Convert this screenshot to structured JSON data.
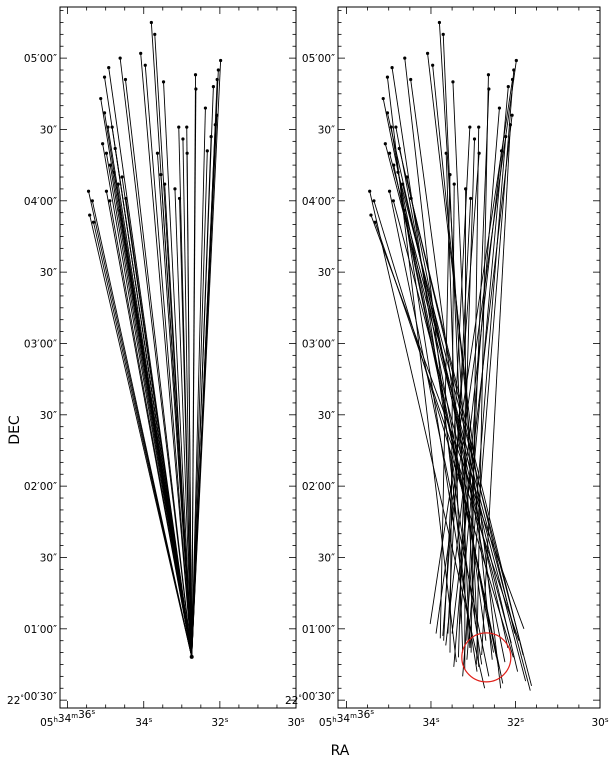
{
  "figure": {
    "xlabel": "RA",
    "ylabel": "DEC"
  },
  "colors": {
    "lines": "#000000",
    "frame": "#000000",
    "circle": "#e0201a"
  },
  "chart_data": [
    {
      "type": "line",
      "panel": "left",
      "xlabel": "RA",
      "ylabel": "DEC",
      "xticks": [
        {
          "value": 36,
          "label": "05h34m36s"
        },
        {
          "value": 34,
          "label": "34s"
        },
        {
          "value": 32,
          "label": "32s"
        },
        {
          "value": 30,
          "label": "30s"
        }
      ],
      "yticks": [
        {
          "value": 300,
          "label": "05′00″"
        },
        {
          "value": 270,
          "label": "30″"
        },
        {
          "value": 240,
          "label": "04′00″"
        },
        {
          "value": 210,
          "label": "30″"
        },
        {
          "value": 180,
          "label": "03′00″"
        },
        {
          "value": 150,
          "label": "30″"
        },
        {
          "value": 120,
          "label": "02′00″"
        },
        {
          "value": 90,
          "label": "30″"
        },
        {
          "value": 60,
          "label": "01′00″"
        },
        {
          "value": 30,
          "label": "22°00′30″"
        }
      ],
      "convergence_point": [
        32.74,
        48.2
      ],
      "source_points": [
        [
          35.45,
          244
        ],
        [
          35.35,
          240
        ],
        [
          35.42,
          234
        ],
        [
          35.32,
          231
        ],
        [
          35.13,
          283
        ],
        [
          35.03,
          277
        ],
        [
          35.08,
          264
        ],
        [
          34.98,
          260
        ],
        [
          34.94,
          271
        ],
        [
          34.83,
          271
        ],
        [
          34.75,
          262
        ],
        [
          34.88,
          255
        ],
        [
          34.78,
          252
        ],
        [
          34.57,
          250
        ],
        [
          34.67,
          247
        ],
        [
          34.98,
          244
        ],
        [
          34.89,
          240
        ],
        [
          34.63,
          236
        ],
        [
          34.47,
          241
        ],
        [
          35.03,
          292
        ],
        [
          34.92,
          296
        ],
        [
          34.62,
          300
        ],
        [
          34.48,
          291
        ],
        [
          34.08,
          302
        ],
        [
          33.96,
          297
        ],
        [
          33.8,
          315
        ],
        [
          33.71,
          310
        ],
        [
          33.48,
          290
        ],
        [
          33.64,
          260
        ],
        [
          33.55,
          251
        ],
        [
          33.45,
          247
        ],
        [
          33.08,
          271
        ],
        [
          32.87,
          271
        ],
        [
          32.97,
          266
        ],
        [
          32.86,
          260
        ],
        [
          33.18,
          245
        ],
        [
          33.06,
          241
        ],
        [
          32.64,
          293
        ],
        [
          32.63,
          287
        ],
        [
          32.38,
          279
        ],
        [
          32.33,
          261
        ],
        [
          32.23,
          267
        ],
        [
          32.17,
          288
        ],
        [
          32.07,
          291
        ],
        [
          32.08,
          276
        ],
        [
          32.12,
          272
        ],
        [
          32.04,
          295
        ],
        [
          31.98,
          299
        ]
      ]
    },
    {
      "type": "line",
      "panel": "right",
      "xlabel": "RA",
      "ylabel": "DEC",
      "xticks": [
        {
          "value": 36,
          "label": "05h34m36s"
        },
        {
          "value": 34,
          "label": "34s"
        },
        {
          "value": 32,
          "label": "32s"
        },
        {
          "value": 30,
          "label": "30s"
        }
      ],
      "yticks": [
        {
          "value": 300,
          "label": "05′00″"
        },
        {
          "value": 270,
          "label": "30″"
        },
        {
          "value": 240,
          "label": "04′00″"
        },
        {
          "value": 210,
          "label": "30″"
        },
        {
          "value": 180,
          "label": "03′00″"
        },
        {
          "value": 150,
          "label": "30″"
        },
        {
          "value": 120,
          "label": "02′00″"
        },
        {
          "value": 90,
          "label": "30″"
        },
        {
          "value": 60,
          "label": "01′00″"
        },
        {
          "value": 30,
          "label": "22°00′30″"
        }
      ],
      "circle": {
        "center": [
          32.69,
          48.0
        ],
        "radius_sec": 0.58
      },
      "segments": [
        [
          [
            35.45,
            244
          ],
          [
            32.73,
            35
          ]
        ],
        [
          [
            35.35,
            240
          ],
          [
            32.05,
            48
          ]
        ],
        [
          [
            35.42,
            234
          ],
          [
            31.8,
            60
          ]
        ],
        [
          [
            35.32,
            231
          ],
          [
            31.92,
            55
          ]
        ],
        [
          [
            35.13,
            283
          ],
          [
            32.4,
            44
          ]
        ],
        [
          [
            35.03,
            277
          ],
          [
            32.18,
            52
          ]
        ],
        [
          [
            35.08,
            264
          ],
          [
            31.76,
            38
          ]
        ],
        [
          [
            34.98,
            260
          ],
          [
            31.65,
            34
          ]
        ],
        [
          [
            34.94,
            271
          ],
          [
            32.91,
            42
          ]
        ],
        [
          [
            34.83,
            271
          ],
          [
            32.52,
            50
          ]
        ],
        [
          [
            34.75,
            262
          ],
          [
            32.02,
            58
          ]
        ],
        [
          [
            34.88,
            255
          ],
          [
            32.3,
            37
          ]
        ],
        [
          [
            34.78,
            252
          ],
          [
            31.62,
            36
          ]
        ],
        [
          [
            34.57,
            250
          ],
          [
            32.25,
            46
          ]
        ],
        [
          [
            34.67,
            247
          ],
          [
            31.95,
            42
          ]
        ],
        [
          [
            34.98,
            244
          ],
          [
            32.63,
            40
          ]
        ],
        [
          [
            34.89,
            240
          ],
          [
            32.1,
            54
          ]
        ],
        [
          [
            34.63,
            236
          ],
          [
            32.45,
            48
          ]
        ],
        [
          [
            34.47,
            241
          ],
          [
            31.82,
            49
          ]
        ],
        [
          [
            35.03,
            292
          ],
          [
            33.4,
            46
          ]
        ],
        [
          [
            34.92,
            296
          ],
          [
            32.8,
            45
          ]
        ],
        [
          [
            34.62,
            300
          ],
          [
            33.05,
            52
          ]
        ],
        [
          [
            34.48,
            291
          ],
          [
            32.7,
            55
          ]
        ],
        [
          [
            34.08,
            302
          ],
          [
            32.35,
            35
          ]
        ],
        [
          [
            33.96,
            297
          ],
          [
            32.55,
            47
          ]
        ],
        [
          [
            33.8,
            315
          ],
          [
            32.95,
            62
          ]
        ],
        [
          [
            33.71,
            310
          ],
          [
            33.08,
            52
          ]
        ],
        [
          [
            33.48,
            290
          ],
          [
            32.87,
            44
          ]
        ],
        [
          [
            33.64,
            260
          ],
          [
            33.25,
            50
          ]
        ],
        [
          [
            33.55,
            251
          ],
          [
            33.78,
            56
          ]
        ],
        [
          [
            33.45,
            247
          ],
          [
            33.55,
            50
          ]
        ],
        [
          [
            33.08,
            271
          ],
          [
            33.7,
            55
          ]
        ],
        [
          [
            32.87,
            271
          ],
          [
            33.05,
            50
          ]
        ],
        [
          [
            32.97,
            266
          ],
          [
            33.35,
            48
          ]
        ],
        [
          [
            32.86,
            260
          ],
          [
            33.72,
            57
          ]
        ],
        [
          [
            33.18,
            245
          ],
          [
            33.2,
            43
          ]
        ],
        [
          [
            33.06,
            241
          ],
          [
            33.6,
            58
          ]
        ],
        [
          [
            32.64,
            293
          ],
          [
            32.92,
            45
          ]
        ],
        [
          [
            32.63,
            287
          ],
          [
            33.15,
            55
          ]
        ],
        [
          [
            32.38,
            279
          ],
          [
            33.46,
            44
          ]
        ],
        [
          [
            32.33,
            261
          ],
          [
            33.65,
            53
          ]
        ],
        [
          [
            32.23,
            267
          ],
          [
            33.25,
            40
          ]
        ],
        [
          [
            32.17,
            288
          ],
          [
            33.32,
            62
          ]
        ],
        [
          [
            32.07,
            291
          ],
          [
            34.02,
            62
          ]
        ],
        [
          [
            32.08,
            276
          ],
          [
            33.5,
            58
          ]
        ],
        [
          [
            32.12,
            272
          ],
          [
            32.8,
            49
          ]
        ],
        [
          [
            32.04,
            295
          ],
          [
            33.15,
            47
          ]
        ],
        [
          [
            31.98,
            299
          ],
          [
            33.88,
            58
          ]
        ]
      ]
    }
  ]
}
